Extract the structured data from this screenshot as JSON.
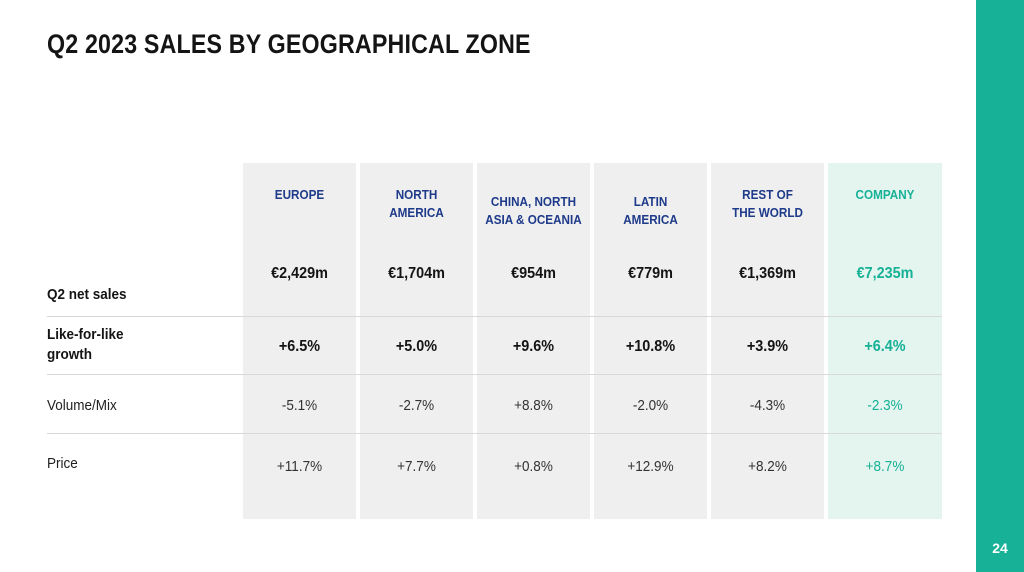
{
  "slide": {
    "title": "Q2 2023 SALES BY GEOGRAPHICAL ZONE",
    "page_number": "24"
  },
  "colors": {
    "accent": "#16b196",
    "header_text": "#1e3a8a",
    "column_background": "#efefef",
    "company_background": "#e4f4ef"
  },
  "table": {
    "columns": [
      {
        "line1": "EUROPE",
        "line2": ""
      },
      {
        "line1": "NORTH",
        "line2": "AMERICA"
      },
      {
        "line1": "CHINA, NORTH",
        "line2": "ASIA & OCEANIA"
      },
      {
        "line1": "LATIN",
        "line2": "AMERICA"
      },
      {
        "line1": "REST OF",
        "line2": "THE WORLD"
      },
      {
        "line1": "COMPANY",
        "line2": ""
      }
    ],
    "rows": [
      {
        "label": "Q2 net sales",
        "label_line2": "",
        "values": [
          "€2,429m",
          "€1,704m",
          "€954m",
          "€779m",
          "€1,369m",
          "€7,235m"
        ]
      },
      {
        "label": "Like-for-like",
        "label_line2": "growth",
        "values": [
          "+6.5%",
          "+5.0%",
          "+9.6%",
          "+10.8%",
          "+3.9%",
          "+6.4%"
        ]
      },
      {
        "label": "Volume/Mix",
        "label_line2": "",
        "values": [
          "-5.1%",
          "-2.7%",
          "+8.8%",
          "-2.0%",
          "-4.3%",
          "-2.3%"
        ]
      },
      {
        "label": "Price",
        "label_line2": "",
        "values": [
          "+11.7%",
          "+7.7%",
          "+0.8%",
          "+12.9%",
          "+8.2%",
          "+8.7%"
        ]
      }
    ]
  }
}
